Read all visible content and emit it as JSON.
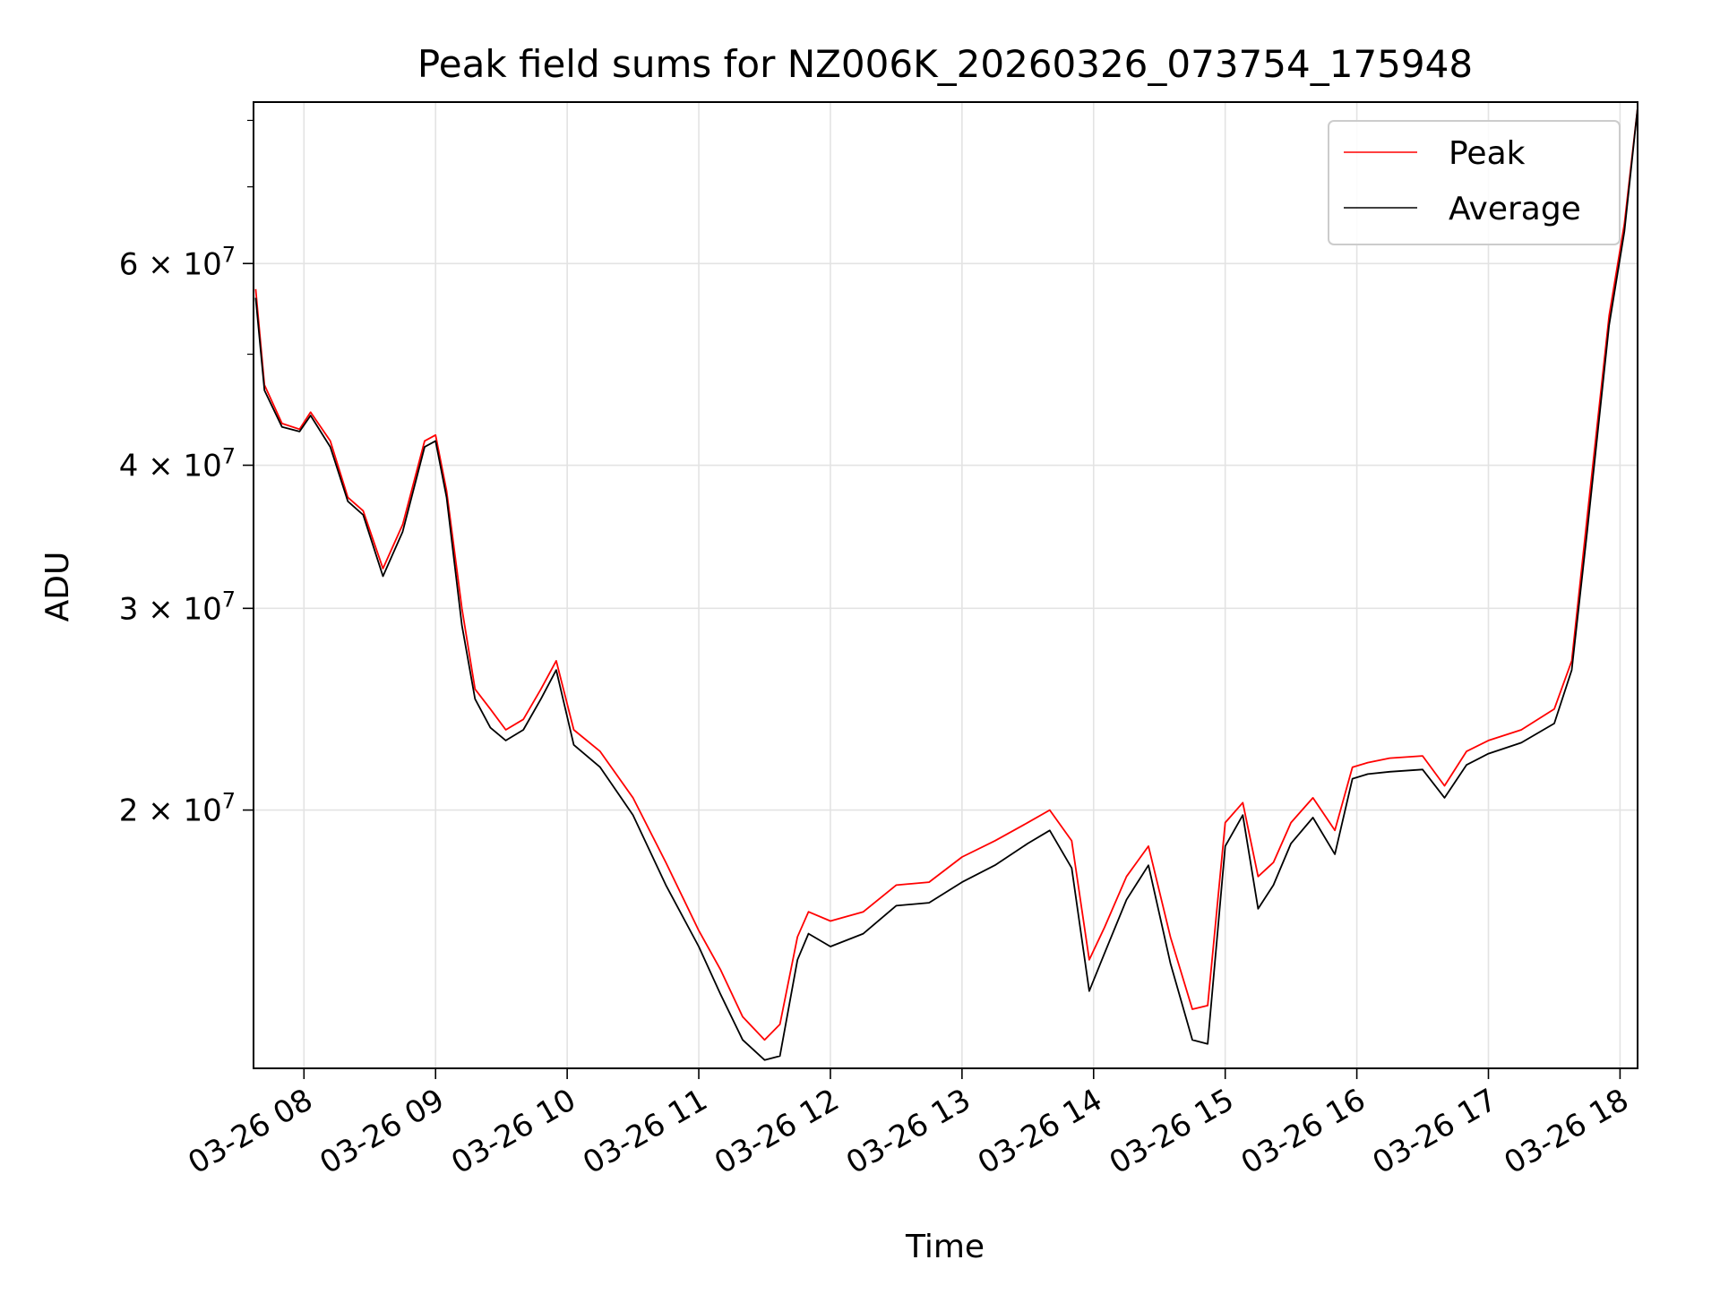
{
  "chart_data": {
    "type": "line",
    "title": "Peak field sums for NZ006K_20260326_073754_175948",
    "xlabel": "Time",
    "ylabel": "ADU",
    "yscale": "log",
    "grid": true,
    "legend_position": "top-right",
    "xlim": [
      "2026-03-26 07:37",
      "2026-03-26 18:08"
    ],
    "ylim": [
      11900000,
      83000000
    ],
    "x_ticks": [
      {
        "value": "2026-03-26 08:00",
        "label": "03-26 08"
      },
      {
        "value": "2026-03-26 09:00",
        "label": "03-26 09"
      },
      {
        "value": "2026-03-26 10:00",
        "label": "03-26 10"
      },
      {
        "value": "2026-03-26 11:00",
        "label": "03-26 11"
      },
      {
        "value": "2026-03-26 12:00",
        "label": "03-26 12"
      },
      {
        "value": "2026-03-26 13:00",
        "label": "03-26 13"
      },
      {
        "value": "2026-03-26 14:00",
        "label": "03-26 14"
      },
      {
        "value": "2026-03-26 15:00",
        "label": "03-26 15"
      },
      {
        "value": "2026-03-26 16:00",
        "label": "03-26 16"
      },
      {
        "value": "2026-03-26 17:00",
        "label": "03-26 17"
      },
      {
        "value": "2026-03-26 18:00",
        "label": "03-26 18"
      }
    ],
    "y_ticks": [
      {
        "value": 20000000,
        "mantissa": "2",
        "exponent": "7"
      },
      {
        "value": 30000000,
        "mantissa": "3",
        "exponent": "7"
      },
      {
        "value": 40000000,
        "mantissa": "4",
        "exponent": "7"
      },
      {
        "value": 60000000,
        "mantissa": "6",
        "exponent": "7"
      }
    ],
    "y_minor_ticks": [
      50000000,
      70000000,
      80000000
    ],
    "series": [
      {
        "name": "Peak",
        "color": "#ff0000",
        "x": [
          "2026-03-26 07:38",
          "2026-03-26 07:42",
          "2026-03-26 07:50",
          "2026-03-26 07:58",
          "2026-03-26 08:03",
          "2026-03-26 08:12",
          "2026-03-26 08:20",
          "2026-03-26 08:27",
          "2026-03-26 08:36",
          "2026-03-26 08:45",
          "2026-03-26 08:55",
          "2026-03-26 09:00",
          "2026-03-26 09:05",
          "2026-03-26 09:12",
          "2026-03-26 09:18",
          "2026-03-26 09:25",
          "2026-03-26 09:32",
          "2026-03-26 09:40",
          "2026-03-26 09:48",
          "2026-03-26 09:55",
          "2026-03-26 10:03",
          "2026-03-26 10:15",
          "2026-03-26 10:30",
          "2026-03-26 10:45",
          "2026-03-26 11:00",
          "2026-03-26 11:10",
          "2026-03-26 11:20",
          "2026-03-26 11:30",
          "2026-03-26 11:37",
          "2026-03-26 11:45",
          "2026-03-26 11:50",
          "2026-03-26 12:00",
          "2026-03-26 12:15",
          "2026-03-26 12:30",
          "2026-03-26 12:45",
          "2026-03-26 13:00",
          "2026-03-26 13:15",
          "2026-03-26 13:30",
          "2026-03-26 13:40",
          "2026-03-26 13:50",
          "2026-03-26 13:58",
          "2026-03-26 14:05",
          "2026-03-26 14:15",
          "2026-03-26 14:25",
          "2026-03-26 14:35",
          "2026-03-26 14:45",
          "2026-03-26 14:52",
          "2026-03-26 15:00",
          "2026-03-26 15:08",
          "2026-03-26 15:15",
          "2026-03-26 15:22",
          "2026-03-26 15:30",
          "2026-03-26 15:40",
          "2026-03-26 15:50",
          "2026-03-26 15:58",
          "2026-03-26 16:05",
          "2026-03-26 16:15",
          "2026-03-26 16:30",
          "2026-03-26 16:40",
          "2026-03-26 16:50",
          "2026-03-26 17:00",
          "2026-03-26 17:15",
          "2026-03-26 17:30",
          "2026-03-26 17:38",
          "2026-03-26 17:45",
          "2026-03-26 17:55",
          "2026-03-26 18:02",
          "2026-03-26 18:08"
        ],
        "values": [
          57000000,
          47000000,
          43500000,
          43000000,
          44500000,
          42000000,
          37500000,
          36500000,
          32500000,
          35500000,
          42000000,
          42500000,
          38000000,
          30000000,
          25500000,
          24500000,
          23500000,
          24000000,
          25500000,
          27000000,
          23500000,
          22500000,
          20500000,
          18000000,
          15700000,
          14500000,
          13200000,
          12600000,
          13000000,
          15500000,
          16300000,
          16000000,
          16300000,
          17200000,
          17300000,
          18200000,
          18800000,
          19500000,
          20000000,
          18800000,
          14800000,
          15800000,
          17500000,
          18600000,
          15500000,
          13400000,
          13500000,
          19500000,
          20300000,
          17500000,
          18000000,
          19500000,
          20500000,
          19200000,
          21800000,
          22000000,
          22200000,
          22300000,
          21000000,
          22500000,
          23000000,
          23500000,
          24500000,
          27000000,
          36000000,
          54000000,
          65000000,
          82000000
        ]
      },
      {
        "name": "Average",
        "color": "#000000",
        "x": [
          "2026-03-26 07:38",
          "2026-03-26 07:42",
          "2026-03-26 07:50",
          "2026-03-26 07:58",
          "2026-03-26 08:03",
          "2026-03-26 08:12",
          "2026-03-26 08:20",
          "2026-03-26 08:27",
          "2026-03-26 08:36",
          "2026-03-26 08:45",
          "2026-03-26 08:55",
          "2026-03-26 09:00",
          "2026-03-26 09:05",
          "2026-03-26 09:12",
          "2026-03-26 09:18",
          "2026-03-26 09:25",
          "2026-03-26 09:32",
          "2026-03-26 09:40",
          "2026-03-26 09:48",
          "2026-03-26 09:55",
          "2026-03-26 10:03",
          "2026-03-26 10:15",
          "2026-03-26 10:30",
          "2026-03-26 10:45",
          "2026-03-26 11:00",
          "2026-03-26 11:10",
          "2026-03-26 11:20",
          "2026-03-26 11:30",
          "2026-03-26 11:37",
          "2026-03-26 11:45",
          "2026-03-26 11:50",
          "2026-03-26 12:00",
          "2026-03-26 12:15",
          "2026-03-26 12:30",
          "2026-03-26 12:45",
          "2026-03-26 13:00",
          "2026-03-26 13:15",
          "2026-03-26 13:30",
          "2026-03-26 13:40",
          "2026-03-26 13:50",
          "2026-03-26 13:58",
          "2026-03-26 14:05",
          "2026-03-26 14:15",
          "2026-03-26 14:25",
          "2026-03-26 14:35",
          "2026-03-26 14:45",
          "2026-03-26 14:52",
          "2026-03-26 15:00",
          "2026-03-26 15:08",
          "2026-03-26 15:15",
          "2026-03-26 15:22",
          "2026-03-26 15:30",
          "2026-03-26 15:40",
          "2026-03-26 15:50",
          "2026-03-26 15:58",
          "2026-03-26 16:05",
          "2026-03-26 16:15",
          "2026-03-26 16:30",
          "2026-03-26 16:40",
          "2026-03-26 16:50",
          "2026-03-26 17:00",
          "2026-03-26 17:15",
          "2026-03-26 17:30",
          "2026-03-26 17:38",
          "2026-03-26 17:45",
          "2026-03-26 17:55",
          "2026-03-26 18:02",
          "2026-03-26 18:08"
        ],
        "values": [
          56000000,
          46500000,
          43200000,
          42800000,
          44200000,
          41500000,
          37200000,
          36200000,
          32000000,
          35000000,
          41500000,
          42000000,
          37500000,
          29000000,
          25000000,
          23600000,
          23000000,
          23500000,
          25000000,
          26500000,
          22800000,
          21800000,
          19800000,
          17200000,
          15200000,
          13800000,
          12600000,
          12100000,
          12200000,
          14800000,
          15600000,
          15200000,
          15600000,
          16500000,
          16600000,
          17300000,
          17900000,
          18700000,
          19200000,
          17800000,
          13900000,
          15000000,
          16700000,
          17900000,
          14700000,
          12600000,
          12500000,
          18600000,
          19800000,
          16400000,
          17200000,
          18700000,
          19700000,
          18300000,
          21300000,
          21500000,
          21600000,
          21700000,
          20500000,
          21900000,
          22400000,
          22900000,
          23800000,
          26500000,
          35000000,
          53000000,
          64000000,
          82000000
        ]
      }
    ]
  }
}
